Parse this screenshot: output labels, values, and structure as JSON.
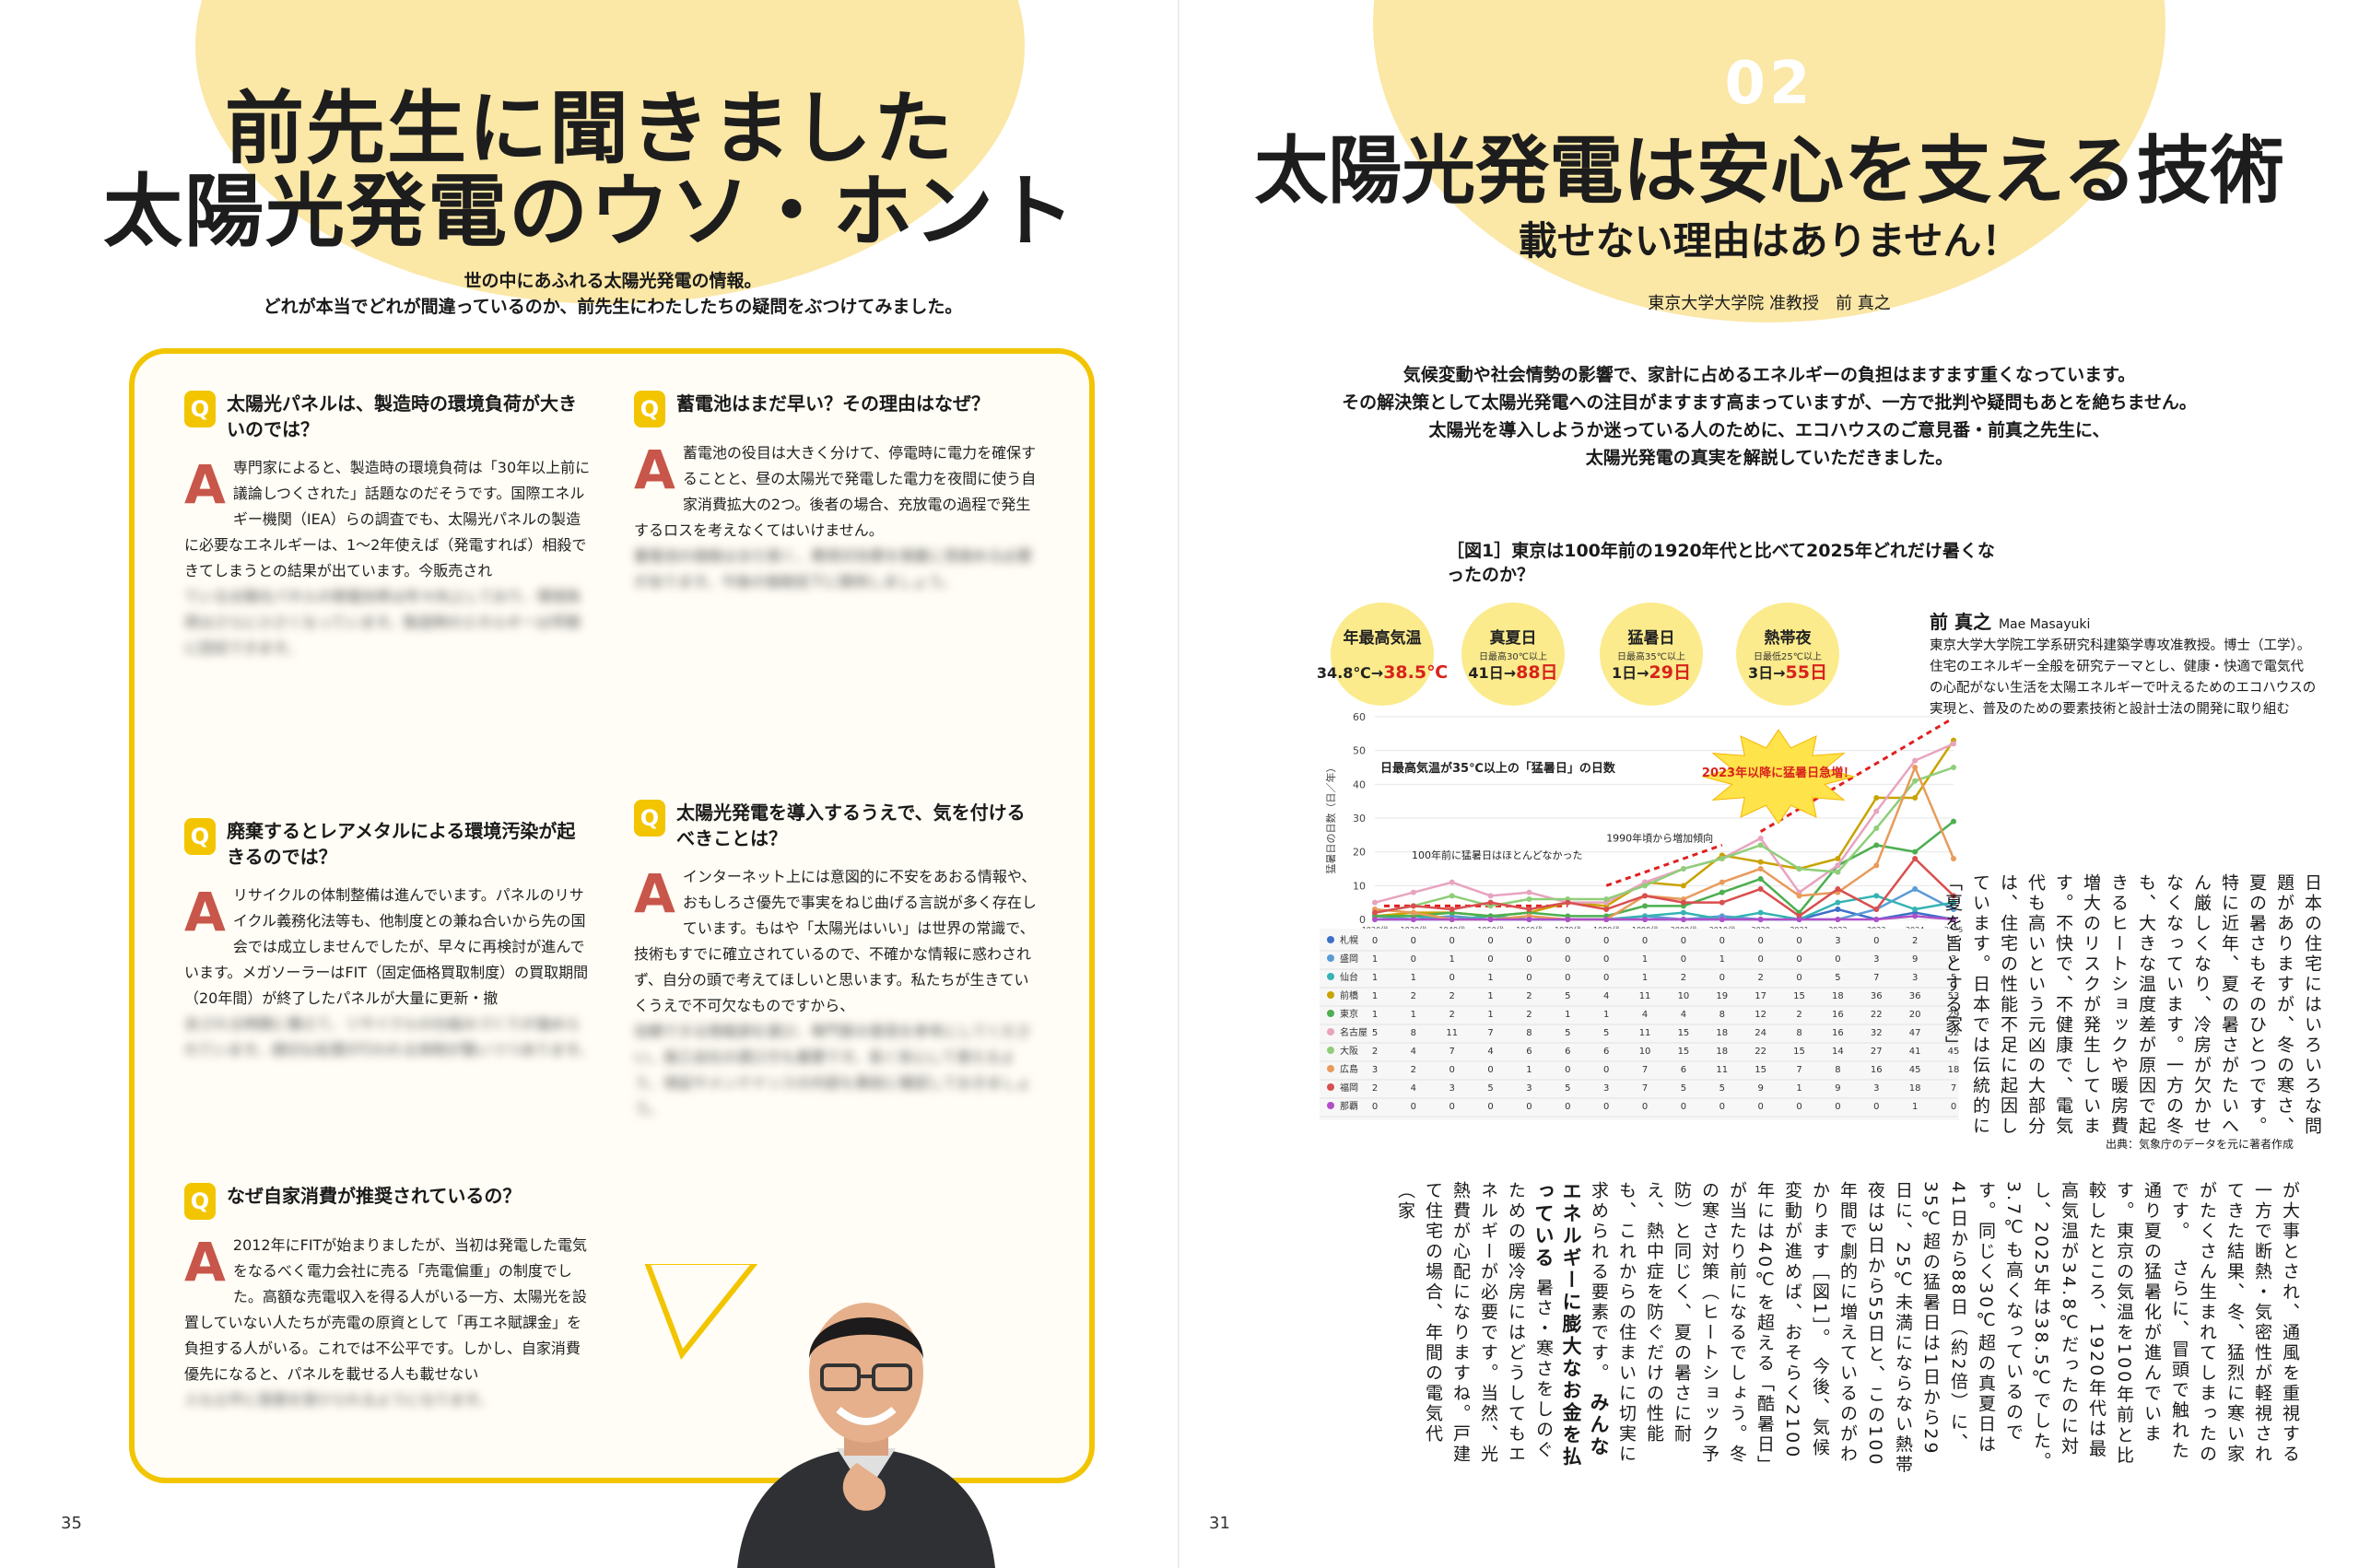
{
  "left": {
    "title_line1": "前先生に聞きました",
    "title_line2": "太陽光発電のウソ・ホント",
    "lead_line1": "世の中にあふれる太陽光発電の情報。",
    "lead_line2": "どれが本当でどれが間違っているのか、前先生にわたしたちの疑問をぶつけてみました。",
    "q_badge": "Q",
    "a_badge": "A",
    "qa": [
      {
        "q": "太陽光パネルは、製造時の環境負荷が大きいのでは？",
        "a": "専門家によると、製造時の環境負荷は「30年以上前に議論しつくされた」話題なのだそうです。国際エネルギー機関（IEA）らの調査でも、太陽光パネルの製造に必要なエネルギーは、1～2年使えば（発電すれば）相殺できてしまうとの結果が出ています。今販売され"
      },
      {
        "q": "蓄電池はまだ早い？その理由はなぜ？",
        "a": "蓄電池の役目は大きく分けて、停電時に電力を確保することと、昼の太陽光で発電した電力を夜間に使う自家消費拡大の2つ。後者の場合、充放電の過程で発生するロスを考えなくてはいけません。"
      },
      {
        "q": "廃棄するとレアメタルによる環境汚染が起きるのでは？",
        "a": "リサイクルの体制整備は進んでいます。パネルのリサイクル義務化法等も、他制度との兼ね合いから先の国会では成立しませんでしたが、早々に再検討が進んでいます。メガソーラーはFIT（固定価格買取制度）の買取期間（20年間）が終了したパネルが大量に更新・撤"
      },
      {
        "q": "太陽光発電を導入するうえで、気を付けるべきことは？",
        "a": "インターネット上には意図的に不安をあおる情報や、おもしろさ優先で事実をねじ曲げる言説が多く存在しています。もはや「太陽光はいい」は世界の常識で、技術もすでに確立されているので、不確かな情報に惑わされず、自分の頭で考えてほしいと思います。私たちが生きていくうえで不可欠なものですから、"
      },
      {
        "q": "なぜ自家消費が推奨されているの？",
        "a": "2012年にFITが始まりましたが、当初は発電した電気をなるべく電力会社に売る「売電偏重」の制度でした。高額な売電収入を得る人がいる一方、太陽光を設置していない人たちが売電の原資として「再エネ賦課金」を負担する人がいる。これでは不公平です。しかし、自家消費優先になると、パネルを載せる人も載せない"
      }
    ],
    "page_number": "35"
  },
  "right": {
    "number": "02",
    "title": "太陽光発電は安心を支える技術",
    "subtitle": "載せない理由はありません！",
    "affiliation": "東京大学大学院 准教授　前 真之",
    "lead_lines": [
      "気候変動や社会情勢の影響で、家計に占めるエネルギーの負担はますます重くなっています。",
      "その解決策として太陽光発電への注目がますます高まっていますが、一方で批判や疑問もあとを絶ちません。",
      "太陽光を導入しようか迷っている人のために、エコハウスのご意見番・前真之先生に、",
      "太陽光発電の真実を解説していただきました。"
    ],
    "profile": {
      "name": "前 真之",
      "name_en": "Mae Masayuki",
      "bio": "東京大学大学院工学系研究科建築学専攻准教授。博士（工学）。住宅のエネルギー全般を研究テーマとし、健康・快適で電気代の心配がない生活を太陽エネルギーで叶えるためのエコハウスの実現と、普及のための要素技術と設計士法の開発に取り組む"
    },
    "body_top": "日本の住宅にはいろいろな問題がありますが、冬の寒さ、夏の暑さもそのひとつです。特に近年、夏の暑さがたいへん厳しくなり、冷房が欠かせなくなっています。一方の冬も、大きな温度差が原因で起きるヒートショックや暖房費増大のリスクが発生しています。不快で、不健康で、電気代も高いという元凶の大部分は、住宅の性能不足に起因しています。日本では伝統的に「夏を旨とする家」",
    "body_bottom_1": "が大事とされ、通風を重視する一方で断熱・気密性が軽視されてきた結果、冬、猛烈に寒い家がたくさん生まれてしまったのです。",
    "body_bottom_2": "さらに、冒頭で触れた通り夏の猛暑化が進んでいます。東京の気温を100年前と比較したところ、1920年代は最高気温が34.8℃だったのに対し、2025年は38.5℃でした。3.7℃も高くなっているのです。同じく30℃超の真夏日は41日から88日（約2倍）に、35℃超の猛暑日は1日から29日に、25℃未満にならない熱帯夜は3日から55日と、この100年間で劇的に増えているのがわかります［図1］。",
    "body_bottom_3": "今後、気候変動が進めば、おそらく2100年には40℃を超える「酷暑日」が当たり前になるでしょう。冬の寒さ対策（ヒートショック予防）と同じく、夏の暑さに耐え、熱中症を防ぐだけの性能も、これからの住まいに切実に求められる要素です。",
    "body_heading": "みんなエネルギーに膨大なお金を払っている",
    "body_bottom_4": "暑さ・寒さをしのぐための暖冷房にはどうしてもエネルギーが必要です。当然、光熱費が心配になりますね。戸建て住宅の場合、年間の電気代（家",
    "page_number": "31"
  },
  "chart_data": {
    "type": "line",
    "title": "［図1］東京は100年前の1920年代と比べて2025年どれだけ暑くなったのか？",
    "subtitle": "日最高気温が35℃以上の「猛暑日」の日数",
    "ylabel": "猛暑日の日数（日／年）",
    "ylim": [
      0,
      60
    ],
    "yticks": [
      0,
      10,
      20,
      30,
      40,
      50,
      60
    ],
    "source": "出典：気象庁のデータを元に著者作成",
    "stats": [
      {
        "label": "年最高気温",
        "sub": "",
        "from": "34.8℃",
        "to": "38.5℃"
      },
      {
        "label": "真夏日",
        "sub": "日最高30℃以上",
        "from": "41日",
        "to": "88日"
      },
      {
        "label": "猛暑日",
        "sub": "日最高35℃以上",
        "from": "1日",
        "to": "29日"
      },
      {
        "label": "熱帯夜",
        "sub": "日最低25℃以上",
        "from": "3日",
        "to": "55日"
      }
    ],
    "burst_text": "2023年以降に猛暑日急増！",
    "note_1": "100年前に猛暑日はほとんどなかった",
    "note_2": "1990年頃から増加傾向",
    "categories": [
      "1920代",
      "1930代",
      "1940代",
      "1950代",
      "1960代",
      "1970代",
      "1980代",
      "1990代",
      "2000代",
      "2010代",
      "2020",
      "2021",
      "2022",
      "2023",
      "2024",
      "2025"
    ],
    "series": [
      {
        "name": "札幌",
        "color": "#3b6fc8",
        "values": [
          0,
          0,
          0,
          0,
          0,
          0,
          0,
          0,
          0,
          0,
          0,
          0,
          3,
          0,
          2,
          0
        ]
      },
      {
        "name": "盛岡",
        "color": "#5b9bd5",
        "values": [
          1,
          0,
          1,
          0,
          0,
          0,
          0,
          1,
          0,
          1,
          0,
          0,
          0,
          3,
          9,
          3
        ]
      },
      {
        "name": "仙台",
        "color": "#36b3b3",
        "values": [
          1,
          1,
          0,
          1,
          0,
          0,
          0,
          1,
          2,
          0,
          2,
          0,
          5,
          7,
          3,
          5
        ]
      },
      {
        "name": "前橋",
        "color": "#c9a300",
        "values": [
          1,
          2,
          2,
          1,
          2,
          5,
          4,
          11,
          10,
          19,
          17,
          15,
          18,
          36,
          36,
          53
        ]
      },
      {
        "name": "東京",
        "color": "#4caf50",
        "values": [
          1,
          1,
          2,
          1,
          2,
          1,
          1,
          4,
          4,
          8,
          12,
          2,
          16,
          22,
          20,
          29
        ]
      },
      {
        "name": "名古屋",
        "color": "#e8a3c0",
        "values": [
          5,
          8,
          11,
          7,
          8,
          5,
          5,
          11,
          15,
          18,
          24,
          8,
          16,
          32,
          47,
          52
        ]
      },
      {
        "name": "大阪",
        "color": "#8fce7a",
        "values": [
          2,
          4,
          7,
          4,
          6,
          6,
          6,
          10,
          15,
          18,
          22,
          15,
          14,
          27,
          41,
          45
        ]
      },
      {
        "name": "広島",
        "color": "#e89b5a",
        "values": [
          3,
          2,
          0,
          0,
          1,
          0,
          0,
          7,
          6,
          11,
          15,
          7,
          8,
          16,
          45,
          18
        ]
      },
      {
        "name": "福岡",
        "color": "#d94f4f",
        "values": [
          2,
          4,
          3,
          5,
          3,
          5,
          3,
          7,
          5,
          5,
          9,
          1,
          9,
          3,
          18,
          7
        ]
      },
      {
        "name": "那覇",
        "color": "#b04fc8",
        "values": [
          0,
          0,
          0,
          0,
          0,
          0,
          0,
          0,
          0,
          0,
          0,
          0,
          0,
          0,
          1,
          0
        ]
      }
    ]
  }
}
